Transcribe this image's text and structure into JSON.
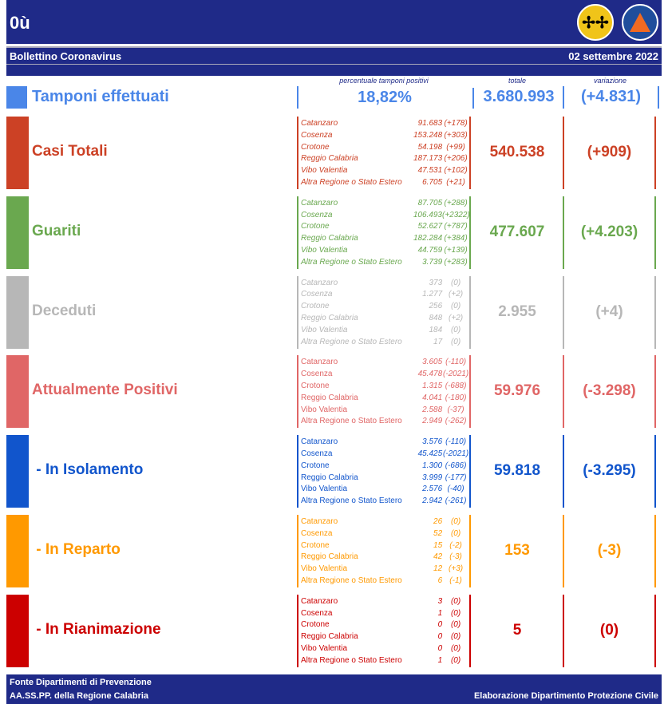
{
  "header": {
    "title": "0ù",
    "subtitle": "Bollettino Coronavirus",
    "date": "02 settembre 2022"
  },
  "columns": {
    "perc": "percentuale tamponi positivi",
    "totale": "totale",
    "variazione": "variazione"
  },
  "tamponi": {
    "label": "Tamponi effettuati",
    "perc": "18,82%",
    "totale": "3.680.993",
    "variazione": "(+4.831)",
    "color": "#4a86e8"
  },
  "sections": [
    {
      "label": "Casi Totali",
      "color": "#cc4125",
      "italic": true,
      "totale": "540.538",
      "variazione": "(+909)",
      "rows": [
        [
          "Catanzaro",
          "91.683",
          "(+178)"
        ],
        [
          "Cosenza",
          "153.248",
          "(+303)"
        ],
        [
          "Crotone",
          "54.198",
          "(+99)"
        ],
        [
          "Reggio Calabria",
          "187.173",
          "(+206)"
        ],
        [
          "Vibo Valentia",
          "47.531",
          "(+102)"
        ],
        [
          "Altra Regione o Stato Estero",
          "6.705",
          "(+21)"
        ]
      ]
    },
    {
      "label": "Guariti",
      "color": "#6aa84f",
      "italic": true,
      "totale": "477.607",
      "variazione": "(+4.203)",
      "rows": [
        [
          "Catanzaro",
          "87.705",
          "(+288)"
        ],
        [
          "Cosenza",
          "106.493",
          "(+2322)"
        ],
        [
          "Crotone",
          "52.627",
          "(+787)"
        ],
        [
          "Reggio Calabria",
          "182.284",
          "(+384)"
        ],
        [
          "Vibo Valentia",
          "44.759",
          "(+139)"
        ],
        [
          "Altra Regione o Stato Estero",
          "3.739",
          "(+283)"
        ]
      ]
    },
    {
      "label": "Deceduti",
      "color": "#b7b7b7",
      "italic": true,
      "totale": "2.955",
      "variazione": "(+4)",
      "rows": [
        [
          "Catanzaro",
          "373",
          "(0)"
        ],
        [
          "Cosenza",
          "1.277",
          "(+2)"
        ],
        [
          "Crotone",
          "256",
          "(0)"
        ],
        [
          "Reggio Calabria",
          "848",
          "(+2)"
        ],
        [
          "Vibo Valentia",
          "184",
          "(0)"
        ],
        [
          "Altra Regione o Stato Estero",
          "17",
          "(0)"
        ]
      ]
    },
    {
      "label": "Attualmente Positivi",
      "color": "#e06666",
      "italic": false,
      "totale": "59.976",
      "variazione": "(-3.298)",
      "rows": [
        [
          "Catanzaro",
          "3.605",
          "(-110)"
        ],
        [
          "Cosenza",
          "45.478",
          "(-2021)"
        ],
        [
          "Crotone",
          "1.315",
          "(-688)"
        ],
        [
          "Reggio Calabria",
          "4.041",
          "(-180)"
        ],
        [
          "Vibo Valentia",
          "2.588",
          "(-37)"
        ],
        [
          "Altra Regione o Stato Estero",
          "2.949",
          "(-262)"
        ]
      ]
    },
    {
      "label": " - In Isolamento",
      "color": "#1155cc",
      "italic": false,
      "totale": "59.818",
      "variazione": "(-3.295)",
      "rows": [
        [
          "Catanzaro",
          "3.576",
          "(-110)"
        ],
        [
          "Cosenza",
          "45.425",
          "(-2021)"
        ],
        [
          "Crotone",
          "1.300",
          "(-686)"
        ],
        [
          "Reggio Calabria",
          "3.999",
          "(-177)"
        ],
        [
          "Vibo Valentia",
          "2.576",
          "(-40)"
        ],
        [
          "Altra Regione o Stato Estero",
          "2.942",
          "(-261)"
        ]
      ]
    },
    {
      "label": " - In Reparto",
      "color": "#ff9900",
      "italic": false,
      "totale": "153",
      "variazione": "(-3)",
      "rows": [
        [
          "Catanzaro",
          "26",
          "(0)"
        ],
        [
          "Cosenza",
          "52",
          "(0)"
        ],
        [
          "Crotone",
          "15",
          "(-2)"
        ],
        [
          "Reggio Calabria",
          "42",
          "(-3)"
        ],
        [
          "Vibo Valentia",
          "12",
          "(+3)"
        ],
        [
          "Altra Regione o Stato Estero",
          "6",
          "(-1)"
        ]
      ]
    },
    {
      "label": " - In Rianimazione",
      "color": "#cc0000",
      "italic": false,
      "totale": "5",
      "variazione": "(0)",
      "rows": [
        [
          "Catanzaro",
          "3",
          "(0)"
        ],
        [
          "Cosenza",
          "1",
          "(0)"
        ],
        [
          "Crotone",
          "0",
          "(0)"
        ],
        [
          "Reggio Calabria",
          "0",
          "(0)"
        ],
        [
          "Vibo Valentia",
          "0",
          "(0)"
        ],
        [
          "Altra Regione o Stato Estero",
          "1",
          "(0)"
        ]
      ]
    }
  ],
  "footer": {
    "line1": "Fonte Dipartimenti di Prevenzione",
    "line2": "AA.SS.PP.  della Regione Calabria",
    "right": "Elaborazione Dipartimento Protezione Civile"
  }
}
